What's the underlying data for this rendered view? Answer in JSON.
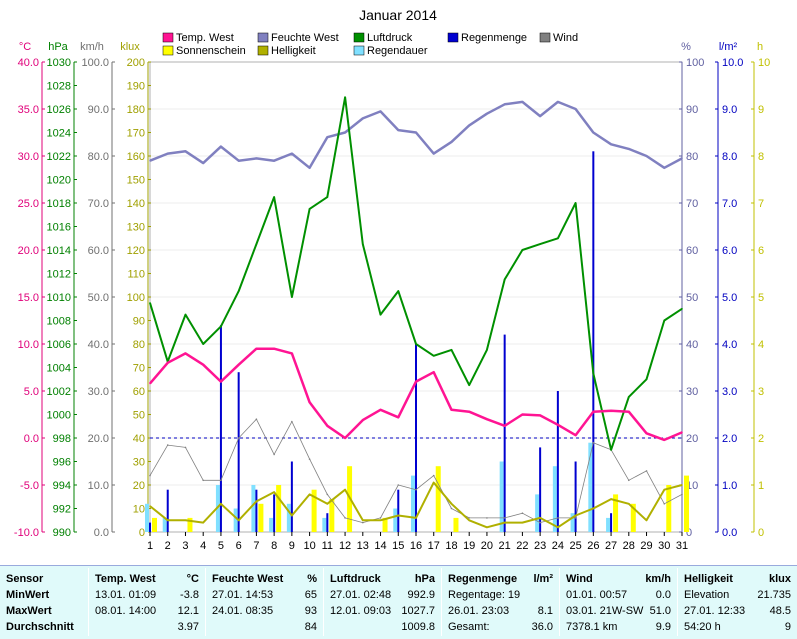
{
  "title": "Januar 2014",
  "legend": [
    {
      "label": "Temp. West",
      "color": "#ff1493"
    },
    {
      "label": "Feuchte West",
      "color": "#8080c0"
    },
    {
      "label": "Luftdruck",
      "color": "#009000"
    },
    {
      "label": "Regenmenge",
      "color": "#0000d0"
    },
    {
      "label": "Wind",
      "color": "#808080"
    },
    {
      "label": "Sonnenschein",
      "color": "#ffff00"
    },
    {
      "label": "Helligkeit",
      "color": "#b0b000"
    },
    {
      "label": "Regendauer",
      "color": "#80e0ff"
    }
  ],
  "axis_units": {
    "temp": "°C",
    "pressure": "hPa",
    "wind": "km/h",
    "lux": "klux",
    "humidity": "%",
    "rain": "l/m²",
    "hours": "h"
  },
  "axes": {
    "temp": [
      "40.0",
      "35.0",
      "30.0",
      "25.0",
      "20.0",
      "15.0",
      "10.0",
      "5.0",
      "0.0",
      "-5.0",
      "-10.0"
    ],
    "pressure": [
      "1030",
      "1028",
      "1026",
      "1024",
      "1022",
      "1020",
      "1018",
      "1016",
      "1014",
      "1012",
      "1010",
      "1008",
      "1006",
      "1004",
      "1002",
      "1000",
      "998",
      "996",
      "994",
      "992",
      "990"
    ],
    "wind": [
      "100.0",
      "90.0",
      "80.0",
      "70.0",
      "60.0",
      "50.0",
      "40.0",
      "30.0",
      "20.0",
      "10.0",
      "0.0"
    ],
    "lux": [
      "200",
      "190",
      "180",
      "170",
      "160",
      "150",
      "140",
      "130",
      "120",
      "110",
      "100",
      "90",
      "80",
      "70",
      "60",
      "50",
      "40",
      "30",
      "20",
      "10",
      "0"
    ],
    "humidity": [
      "100",
      "90",
      "80",
      "70",
      "60",
      "50",
      "40",
      "30",
      "20",
      "10",
      "0"
    ],
    "rain": [
      "10.0",
      "9.0",
      "8.0",
      "7.0",
      "6.0",
      "5.0",
      "4.0",
      "3.0",
      "2.0",
      "1.0",
      "0.0"
    ],
    "hours": [
      "10",
      "9",
      "8",
      "7",
      "6",
      "5",
      "4",
      "3",
      "2",
      "1",
      "0"
    ],
    "days": [
      "1",
      "2",
      "3",
      "4",
      "5",
      "6",
      "7",
      "8",
      "9",
      "10",
      "11",
      "12",
      "13",
      "14",
      "15",
      "16",
      "17",
      "18",
      "19",
      "20",
      "21",
      "22",
      "23",
      "24",
      "25",
      "26",
      "27",
      "28",
      "29",
      "30",
      "31"
    ]
  },
  "chart_data": {
    "type": "line",
    "title": "Januar 2014",
    "x": [
      1,
      2,
      3,
      4,
      5,
      6,
      7,
      8,
      9,
      10,
      11,
      12,
      13,
      14,
      15,
      16,
      17,
      18,
      19,
      20,
      21,
      22,
      23,
      24,
      25,
      26,
      27,
      28,
      29,
      30,
      31
    ],
    "series": [
      {
        "name": "Temp. West",
        "unit": "°C",
        "color": "#ff1493",
        "values": [
          5.8,
          8.0,
          9.0,
          7.8,
          6.0,
          7.8,
          9.5,
          9.5,
          9.0,
          3.8,
          1.3,
          0.0,
          1.9,
          3.0,
          2.2,
          6.0,
          7.0,
          3.0,
          2.8,
          2.0,
          1.3,
          2.5,
          2.4,
          1.4,
          0.3,
          2.8,
          2.9,
          2.8,
          0.5,
          -0.2,
          0.6
        ]
      },
      {
        "name": "Feuchte West",
        "unit": "%",
        "color": "#8080c0",
        "values": [
          79,
          80.5,
          81,
          78.5,
          82,
          79,
          79.5,
          79,
          80.5,
          77.5,
          84,
          85,
          88,
          89.5,
          85.5,
          85,
          80.5,
          83,
          86.5,
          89,
          91,
          91.5,
          88.5,
          91.5,
          90,
          85,
          82.5,
          81.5,
          80,
          77.5,
          79.5
        ]
      },
      {
        "name": "Luftdruck",
        "unit": "hPa",
        "color": "#009000",
        "values": [
          1009.5,
          1004.5,
          1008.5,
          1006,
          1007.5,
          1010.5,
          1014.5,
          1018.5,
          1010,
          1017.5,
          1018.5,
          1027,
          1014.5,
          1008.5,
          1010.5,
          1006,
          1005,
          1005.5,
          1002.5,
          1005.5,
          1011.5,
          1014,
          1014.5,
          1015,
          1018,
          1003.5,
          997,
          1001.5,
          1003,
          1008,
          1009
        ]
      },
      {
        "name": "Wind",
        "unit": "km/h",
        "color": "#808080",
        "values": [
          12,
          18.5,
          18,
          11,
          11,
          20,
          24,
          16.5,
          23.5,
          15.5,
          8,
          3,
          2,
          3,
          10,
          9,
          12,
          5,
          3,
          3,
          3,
          4,
          2,
          3,
          3,
          19,
          17.5,
          11,
          13,
          6,
          8
        ]
      },
      {
        "name": "Helligkeit",
        "unit": "klux",
        "color": "#b0b000",
        "values": [
          11,
          5,
          5,
          4,
          12,
          5,
          13,
          17,
          7,
          16,
          12,
          18,
          5,
          5,
          7,
          6,
          21,
          12,
          5,
          2,
          4,
          4,
          6,
          2,
          7,
          10,
          14,
          12,
          5,
          18,
          20
        ]
      },
      {
        "name": "Regenmenge",
        "unit": "l/m²",
        "color": "#0000d0",
        "values": [
          0.2,
          0.9,
          0,
          0,
          4.4,
          3.4,
          0.9,
          0.8,
          1.5,
          0,
          0.4,
          0,
          0,
          0,
          0.9,
          4.0,
          0,
          0,
          0,
          0,
          4.2,
          0,
          1.8,
          3.0,
          1.5,
          8.1,
          0.4,
          0,
          0,
          0,
          0
        ]
      },
      {
        "name": "Regendauer",
        "unit": "h",
        "color": "#80e0ff",
        "values": [
          0.6,
          0.3,
          0,
          0,
          1.0,
          0.5,
          1.0,
          0.3,
          0.6,
          0,
          0.3,
          0,
          0,
          0,
          0.5,
          1.2,
          0,
          0,
          0,
          0,
          1.5,
          0,
          0.8,
          1.4,
          0.4,
          1.9,
          0.3,
          0,
          0,
          0,
          0
        ]
      },
      {
        "name": "Sonnenschein",
        "unit": "h",
        "color": "#ffff00",
        "values": [
          0.3,
          0,
          0.3,
          0,
          0,
          0,
          0.6,
          1.0,
          0,
          0.9,
          0.7,
          1.4,
          0,
          0.3,
          0,
          0,
          1.4,
          0.3,
          0,
          0,
          0,
          0,
          0,
          0,
          0,
          0,
          0.8,
          0.6,
          0,
          1.0,
          1.2
        ]
      }
    ],
    "ylim": {
      "temp": [
        -10,
        40
      ],
      "pressure": [
        990,
        1030
      ],
      "wind": [
        0,
        100
      ],
      "lux": [
        0,
        200
      ],
      "humidity": [
        0,
        100
      ],
      "rain": [
        0,
        10
      ],
      "hours": [
        0,
        10
      ]
    },
    "reference_line": 20
  },
  "table": {
    "row_labels": [
      "Sensor",
      "MinWert",
      "MaxWert",
      "Durchschnitt"
    ],
    "temp": {
      "title": "Temp. West",
      "unit": "°C",
      "min_time": "13.01.  01:09",
      "min_val": "-3.8",
      "max_time": "08.01.  14:00",
      "max_val": "12.1",
      "avg": "3.97"
    },
    "humidity": {
      "title": "Feuchte West",
      "unit": "%",
      "min_time": "27.01.  14:53",
      "min_val": "65",
      "max_time": "24.01.  08:35",
      "max_val": "93",
      "avg": "84"
    },
    "pressure": {
      "title": "Luftdruck",
      "unit": "hPa",
      "min_time": "27.01.  02:48",
      "min_val": "992.9",
      "max_time": "12.01.  09:03",
      "max_val": "1027.7",
      "avg": "1009.8"
    },
    "rain": {
      "title": "Regenmenge",
      "unit": "l/m²",
      "row1": "Regentage: 19",
      "row2_time": "26.01.  23:03",
      "row2_val": "8.1",
      "row3_label": "Gesamt:",
      "row3_val": "36.0"
    },
    "wind": {
      "title": "Wind",
      "unit": "km/h",
      "row1_time": "01.01.  00:57",
      "row1_val": "0.0",
      "row2_time": "03.01.  21W-SW",
      "row2_val": "51.0",
      "row3_label": "7378.1 km",
      "row3_val": "9.9"
    },
    "lux": {
      "title": "Helligkeit",
      "unit": "klux",
      "row1_label": "Elevation",
      "row1_val": "21.735",
      "row2_time": "27.01.  12:33",
      "row2_val": "48.5",
      "row3_label": "54:20 h",
      "row3_val": "9"
    }
  }
}
